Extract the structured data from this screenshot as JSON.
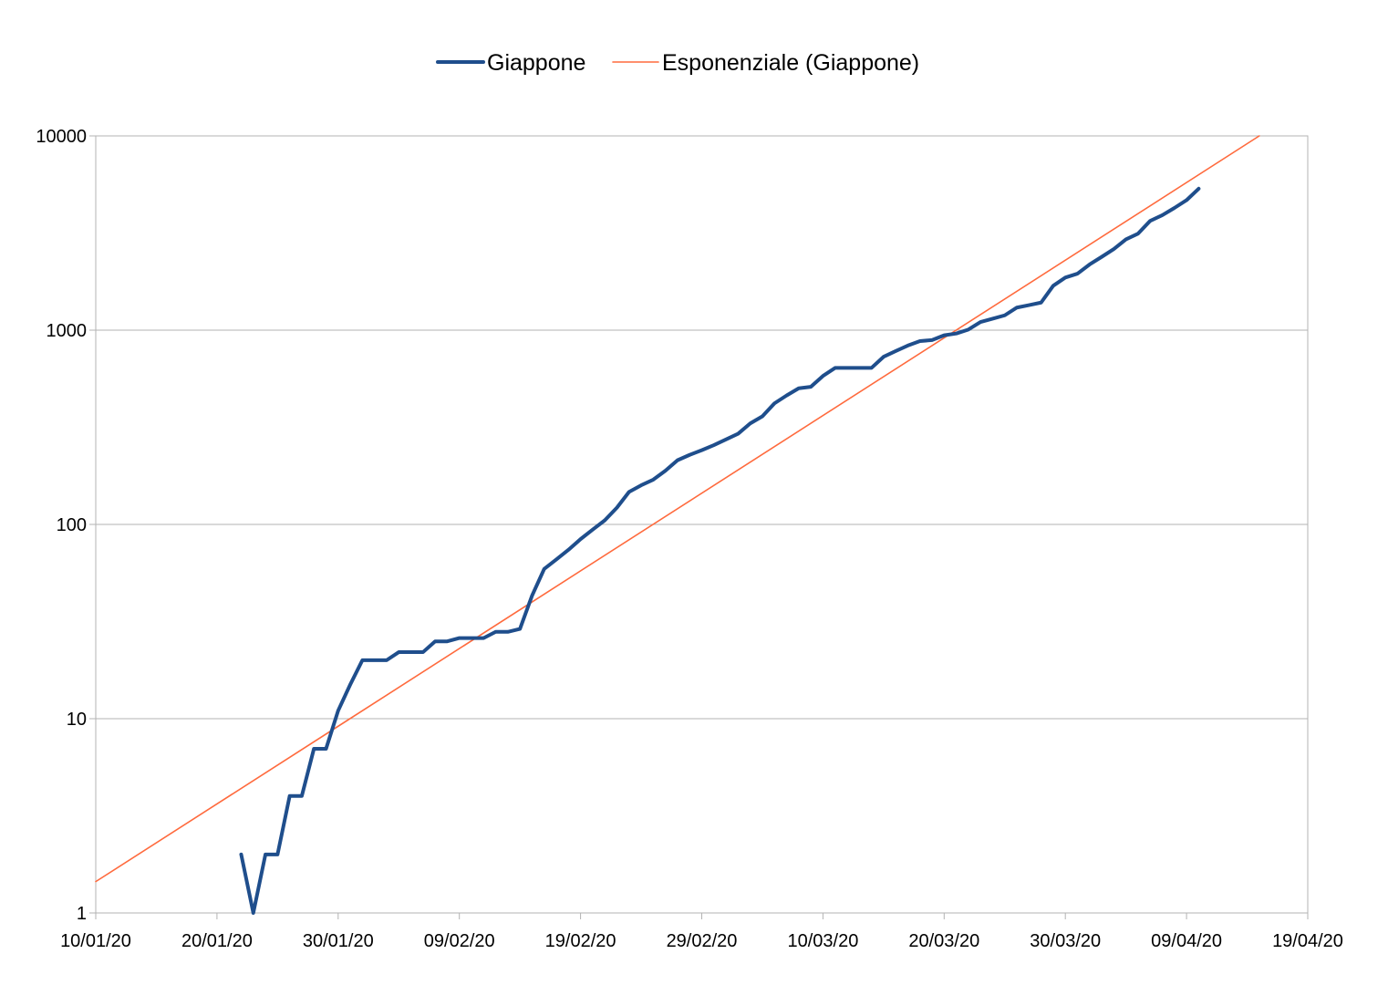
{
  "chart_data": {
    "type": "line",
    "title": "",
    "xlabel": "",
    "ylabel": "",
    "yscale": "log",
    "ylim": [
      1,
      10000
    ],
    "xlim": [
      "2020-01-10",
      "2020-04-19"
    ],
    "grid": true,
    "legend_position": "top",
    "y_ticks": [
      "1",
      "10",
      "100",
      "1000",
      "10000"
    ],
    "x_ticks": [
      "10/01/20",
      "20/01/20",
      "30/01/20",
      "09/02/20",
      "19/02/20",
      "29/02/20",
      "10/03/20",
      "20/03/20",
      "30/03/20",
      "09/04/20",
      "19/04/20"
    ],
    "series": [
      {
        "name": "Giappone",
        "color": "#1f4e8c",
        "points": [
          [
            "2020-01-22",
            2
          ],
          [
            "2020-01-23",
            1
          ],
          [
            "2020-01-24",
            2
          ],
          [
            "2020-01-25",
            2
          ],
          [
            "2020-01-26",
            4
          ],
          [
            "2020-01-27",
            4
          ],
          [
            "2020-01-28",
            7
          ],
          [
            "2020-01-29",
            7
          ],
          [
            "2020-01-30",
            11
          ],
          [
            "2020-01-31",
            15
          ],
          [
            "2020-02-01",
            20
          ],
          [
            "2020-02-02",
            20
          ],
          [
            "2020-02-03",
            20
          ],
          [
            "2020-02-04",
            22
          ],
          [
            "2020-02-05",
            22
          ],
          [
            "2020-02-06",
            22
          ],
          [
            "2020-02-07",
            25
          ],
          [
            "2020-02-08",
            25
          ],
          [
            "2020-02-09",
            26
          ],
          [
            "2020-02-10",
            26
          ],
          [
            "2020-02-11",
            26
          ],
          [
            "2020-02-12",
            28
          ],
          [
            "2020-02-13",
            28
          ],
          [
            "2020-02-14",
            29
          ],
          [
            "2020-02-15",
            43
          ],
          [
            "2020-02-16",
            59
          ],
          [
            "2020-02-17",
            66
          ],
          [
            "2020-02-18",
            74
          ],
          [
            "2020-02-19",
            84
          ],
          [
            "2020-02-20",
            94
          ],
          [
            "2020-02-21",
            105
          ],
          [
            "2020-02-22",
            122
          ],
          [
            "2020-02-23",
            147
          ],
          [
            "2020-02-24",
            159
          ],
          [
            "2020-02-25",
            170
          ],
          [
            "2020-02-26",
            189
          ],
          [
            "2020-02-27",
            214
          ],
          [
            "2020-02-28",
            228
          ],
          [
            "2020-02-29",
            241
          ],
          [
            "2020-03-01",
            256
          ],
          [
            "2020-03-02",
            274
          ],
          [
            "2020-03-03",
            293
          ],
          [
            "2020-03-04",
            331
          ],
          [
            "2020-03-05",
            360
          ],
          [
            "2020-03-06",
            420
          ],
          [
            "2020-03-07",
            461
          ],
          [
            "2020-03-08",
            502
          ],
          [
            "2020-03-09",
            511
          ],
          [
            "2020-03-10",
            581
          ],
          [
            "2020-03-11",
            639
          ],
          [
            "2020-03-12",
            639
          ],
          [
            "2020-03-13",
            639
          ],
          [
            "2020-03-14",
            639
          ],
          [
            "2020-03-15",
            729
          ],
          [
            "2020-03-16",
            780
          ],
          [
            "2020-03-17",
            833
          ],
          [
            "2020-03-18",
            878
          ],
          [
            "2020-03-19",
            889
          ],
          [
            "2020-03-20",
            941
          ],
          [
            "2020-03-21",
            961
          ],
          [
            "2020-03-22",
            1007
          ],
          [
            "2020-03-23",
            1101
          ],
          [
            "2020-03-24",
            1145
          ],
          [
            "2020-03-25",
            1192
          ],
          [
            "2020-03-26",
            1307
          ],
          [
            "2020-03-27",
            1345
          ],
          [
            "2020-03-28",
            1387
          ],
          [
            "2020-03-29",
            1693
          ],
          [
            "2020-03-30",
            1866
          ],
          [
            "2020-03-31",
            1953
          ],
          [
            "2020-04-01",
            2178
          ],
          [
            "2020-04-02",
            2384
          ],
          [
            "2020-04-03",
            2617
          ],
          [
            "2020-04-04",
            2935
          ],
          [
            "2020-04-05",
            3139
          ],
          [
            "2020-04-06",
            3654
          ],
          [
            "2020-04-07",
            3906
          ],
          [
            "2020-04-08",
            4257
          ],
          [
            "2020-04-09",
            4667
          ],
          [
            "2020-04-10",
            5347
          ]
        ]
      },
      {
        "name": "Esponenziale (Giappone)",
        "color": "#ff6a3d",
        "fit": "exponential",
        "points": [
          [
            "2020-01-10",
            1.45
          ],
          [
            "2020-04-15",
            10000
          ]
        ]
      }
    ]
  }
}
